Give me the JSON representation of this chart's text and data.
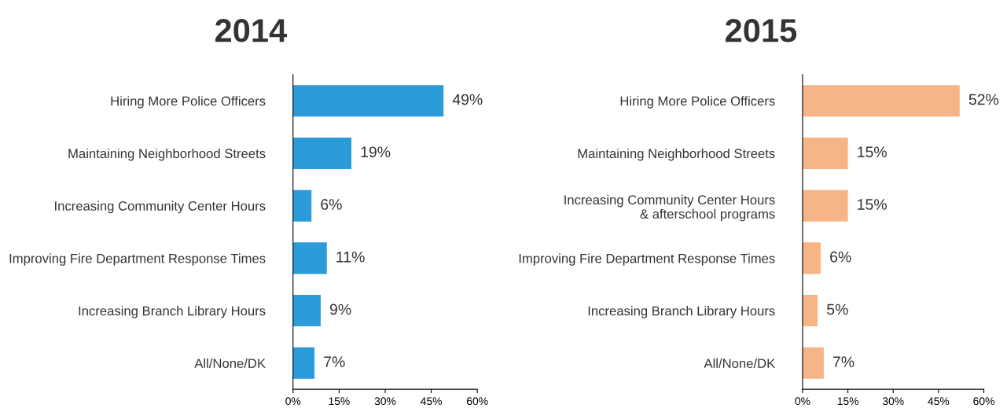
{
  "chart_data": [
    {
      "type": "bar",
      "orientation": "horizontal",
      "title": "2014",
      "categories": [
        "Hiring More Police Officers",
        "Maintaining Neighborhood Streets",
        "Increasing Community Center Hours",
        "Improving Fire Department Response Times",
        "Increasing Branch Library Hours",
        "All/None/DK"
      ],
      "values": [
        49,
        19,
        6,
        11,
        9,
        7
      ],
      "value_labels": [
        "49%",
        "19%",
        "6%",
        "11%",
        "9%",
        "7%"
      ],
      "color": "#2b9bd9",
      "xlim": [
        0,
        60
      ],
      "xticks": [
        {
          "value": 0,
          "label": "0%"
        },
        {
          "value": 15,
          "label": "15%"
        },
        {
          "value": 30,
          "label": "30%"
        },
        {
          "value": 45,
          "label": "45%"
        },
        {
          "value": 60,
          "label": "60%"
        }
      ],
      "grid": false,
      "legend": false
    },
    {
      "type": "bar",
      "orientation": "horizontal",
      "title": "2015",
      "categories": [
        "Hiring More Police Officers",
        "Maintaining Neighborhood Streets",
        "Increasing Community Center Hours\n& afterschool programs",
        "Improving Fire Department Response Times",
        "Increasing Branch Library Hours",
        "All/None/DK"
      ],
      "values": [
        52,
        15,
        15,
        6,
        5,
        7
      ],
      "value_labels": [
        "52%",
        "15%",
        "15%",
        "6%",
        "5%",
        "7%"
      ],
      "color": "#f7b487",
      "xlim": [
        0,
        60
      ],
      "xticks": [
        {
          "value": 0,
          "label": "0%"
        },
        {
          "value": 15,
          "label": "15%"
        },
        {
          "value": 30,
          "label": "30%"
        },
        {
          "value": 45,
          "label": "45%"
        },
        {
          "value": 60,
          "label": "60%"
        }
      ],
      "grid": false,
      "legend": false
    }
  ]
}
